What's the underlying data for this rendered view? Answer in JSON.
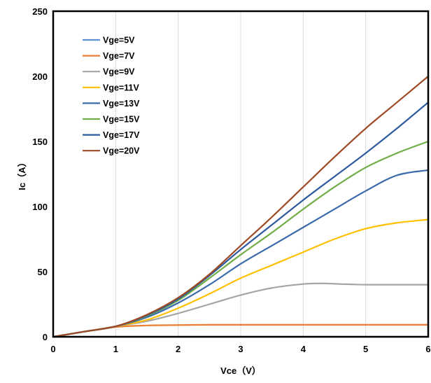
{
  "chart_data": {
    "type": "line",
    "title": "",
    "xlabel": "Vce（V）",
    "ylabel": "Ic（A）",
    "xlim": [
      0,
      6
    ],
    "ylim": [
      0,
      250
    ],
    "xticks": [
      0,
      1,
      2,
      3,
      4,
      5,
      6
    ],
    "yticks": [
      0,
      50,
      100,
      150,
      200,
      250
    ],
    "grid": "vertical-only",
    "legend_position": "top-left",
    "series": [
      {
        "name": "Vge=5V",
        "color": "#5b8fd4",
        "points": [
          [
            0,
            0
          ],
          [
            6,
            0
          ]
        ]
      },
      {
        "name": "Vge=7V",
        "color": "#ed7d31",
        "points": [
          [
            0,
            0
          ],
          [
            0.5,
            4
          ],
          [
            1,
            7.5
          ],
          [
            1.5,
            8.7
          ],
          [
            2,
            9
          ],
          [
            2.5,
            9.2
          ],
          [
            3,
            9.2
          ],
          [
            4,
            9.2
          ],
          [
            5,
            9.2
          ],
          [
            6,
            9.2
          ]
        ]
      },
      {
        "name": "Vge=9V",
        "color": "#a5a5a5",
        "points": [
          [
            0,
            0
          ],
          [
            0.5,
            4
          ],
          [
            1,
            8
          ],
          [
            1.5,
            12
          ],
          [
            2,
            18
          ],
          [
            2.5,
            25
          ],
          [
            3,
            32
          ],
          [
            3.5,
            37.5
          ],
          [
            4,
            40.5
          ],
          [
            4.3,
            41
          ],
          [
            4.6,
            40.5
          ],
          [
            5,
            40
          ],
          [
            5.5,
            40
          ],
          [
            6,
            40
          ]
        ]
      },
      {
        "name": "Vge=11V",
        "color": "#ffc000",
        "points": [
          [
            0,
            0
          ],
          [
            0.5,
            4
          ],
          [
            1,
            8
          ],
          [
            1.5,
            13
          ],
          [
            2,
            22
          ],
          [
            2.5,
            33
          ],
          [
            3,
            45
          ],
          [
            3.5,
            55
          ],
          [
            4,
            65
          ],
          [
            4.5,
            75
          ],
          [
            5,
            83
          ],
          [
            5.5,
            87.5
          ],
          [
            6,
            90
          ]
        ]
      },
      {
        "name": "Vge=13V",
        "color": "#3a6aaa",
        "points": [
          [
            0,
            0
          ],
          [
            0.5,
            4
          ],
          [
            1,
            8
          ],
          [
            1.5,
            15
          ],
          [
            2,
            26
          ],
          [
            2.5,
            40
          ],
          [
            3,
            56
          ],
          [
            3.5,
            70
          ],
          [
            4,
            84
          ],
          [
            4.5,
            98
          ],
          [
            5,
            112
          ],
          [
            5.5,
            124
          ],
          [
            6,
            128
          ]
        ]
      },
      {
        "name": "Vge=15V",
        "color": "#70ad47",
        "points": [
          [
            0,
            0
          ],
          [
            0.5,
            4
          ],
          [
            1,
            8
          ],
          [
            1.5,
            16
          ],
          [
            2,
            28
          ],
          [
            2.5,
            45
          ],
          [
            3,
            63
          ],
          [
            3.5,
            80
          ],
          [
            4,
            98
          ],
          [
            4.5,
            115
          ],
          [
            5,
            130
          ],
          [
            5.5,
            141
          ],
          [
            6,
            150
          ]
        ]
      },
      {
        "name": "Vge=17V",
        "color": "#2e5a9e",
        "points": [
          [
            0,
            0
          ],
          [
            0.5,
            4
          ],
          [
            1,
            8
          ],
          [
            1.5,
            16.5
          ],
          [
            2,
            29
          ],
          [
            2.5,
            47
          ],
          [
            3,
            67
          ],
          [
            3.5,
            86
          ],
          [
            4,
            105
          ],
          [
            4.5,
            123
          ],
          [
            5,
            141
          ],
          [
            5.5,
            160
          ],
          [
            6,
            180
          ]
        ]
      },
      {
        "name": "Vge=20V",
        "color": "#9e4a24",
        "points": [
          [
            0,
            0
          ],
          [
            0.5,
            4
          ],
          [
            1,
            8
          ],
          [
            1.5,
            17
          ],
          [
            2,
            30
          ],
          [
            2.5,
            48
          ],
          [
            3,
            70
          ],
          [
            3.5,
            92
          ],
          [
            4,
            115
          ],
          [
            4.5,
            138
          ],
          [
            5,
            160
          ],
          [
            5.5,
            180
          ],
          [
            6,
            200
          ]
        ]
      }
    ]
  },
  "colors": {
    "frame": "#000000",
    "grid": "#d9d9d9",
    "background": "#ffffff"
  }
}
